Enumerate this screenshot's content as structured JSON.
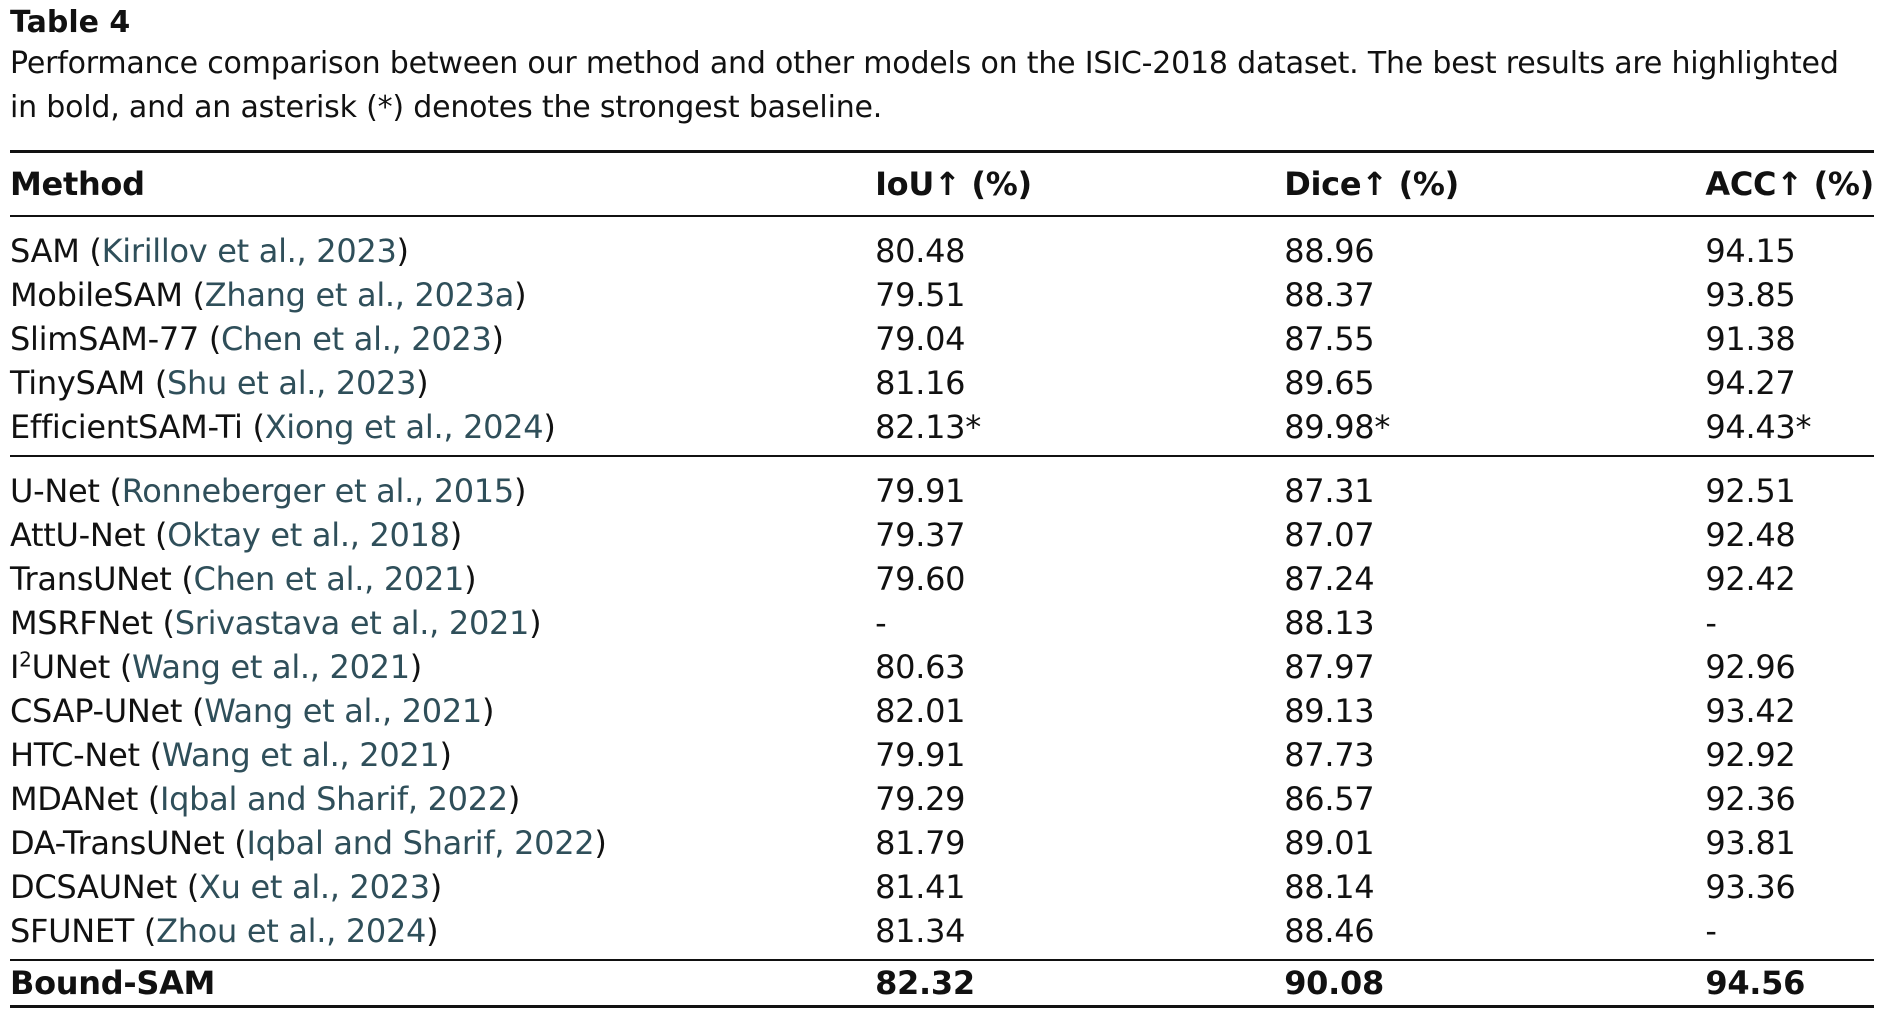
{
  "table_label": "Table 4",
  "caption": "Performance comparison between our method and other models on the ISIC-2018 dataset. The best results are highlighted in bold, and an asterisk (*) denotes the strongest baseline.",
  "headers": {
    "method": "Method",
    "iou": "IoU↑ (%)",
    "dice": "Dice↑ (%)",
    "acc": "ACC↑ (%)"
  },
  "sam_group": [
    {
      "name": "SAM",
      "cite": "Kirillov et al., 2023",
      "iou": "80.48",
      "dice": "88.96",
      "acc": "94.15"
    },
    {
      "name": "MobileSAM",
      "cite": "Zhang et al., 2023a",
      "iou": "79.51",
      "dice": "88.37",
      "acc": "93.85"
    },
    {
      "name": "SlimSAM-77",
      "cite": "Chen et al., 2023",
      "iou": "79.04",
      "dice": "87.55",
      "acc": "91.38"
    },
    {
      "name": "TinySAM",
      "cite": "Shu et al., 2023",
      "iou": "81.16",
      "dice": "89.65",
      "acc": "94.27"
    },
    {
      "name": "EfficientSAM-Ti",
      "cite": "Xiong et al., 2024",
      "iou": "82.13*",
      "dice": "89.98*",
      "acc": "94.43*"
    }
  ],
  "unet_group": [
    {
      "name": "U-Net",
      "cite": "Ronneberger et al., 2015",
      "iou": "79.91",
      "dice": "87.31",
      "acc": "92.51"
    },
    {
      "name": "AttU-Net",
      "cite": "Oktay et al., 2018",
      "iou": "79.37",
      "dice": "87.07",
      "acc": "92.48"
    },
    {
      "name": "TransUNet",
      "cite": "Chen et al., 2021",
      "iou": "79.60",
      "dice": "87.24",
      "acc": "92.42"
    },
    {
      "name": "MSRFNet",
      "cite": "Srivastava et al., 2021",
      "iou": "-",
      "dice": "88.13",
      "acc": "-"
    },
    {
      "name_pre": "I",
      "name_sup": "2",
      "name_post": "UNet",
      "cite": "Wang et al., 2021",
      "iou": "80.63",
      "dice": "87.97",
      "acc": "92.96"
    },
    {
      "name": "CSAP-UNet",
      "cite": "Wang et al., 2021",
      "iou": "82.01",
      "dice": "89.13",
      "acc": "93.42"
    },
    {
      "name": "HTC-Net",
      "cite": "Wang et al., 2021",
      "iou": "79.91",
      "dice": "87.73",
      "acc": "92.92"
    },
    {
      "name": "MDANet",
      "cite": "Iqbal and Sharif, 2022",
      "iou": "79.29",
      "dice": "86.57",
      "acc": "92.36"
    },
    {
      "name": "DA-TransUNet",
      "cite": "Iqbal and Sharif, 2022",
      "iou": "81.79",
      "dice": "89.01",
      "acc": "93.81"
    },
    {
      "name": "DCSAUNet",
      "cite": "Xu et al., 2023",
      "iou": "81.41",
      "dice": "88.14",
      "acc": "93.36"
    },
    {
      "name": "SFUNET",
      "cite": "Zhou et al., 2024",
      "iou": "81.34",
      "dice": "88.46",
      "acc": "-"
    }
  ],
  "ours": {
    "name": "Bound-SAM",
    "iou": "82.32",
    "dice": "90.08",
    "acc": "94.56"
  },
  "colors": {
    "citation": "#2f4f5a",
    "text": "#111111"
  }
}
